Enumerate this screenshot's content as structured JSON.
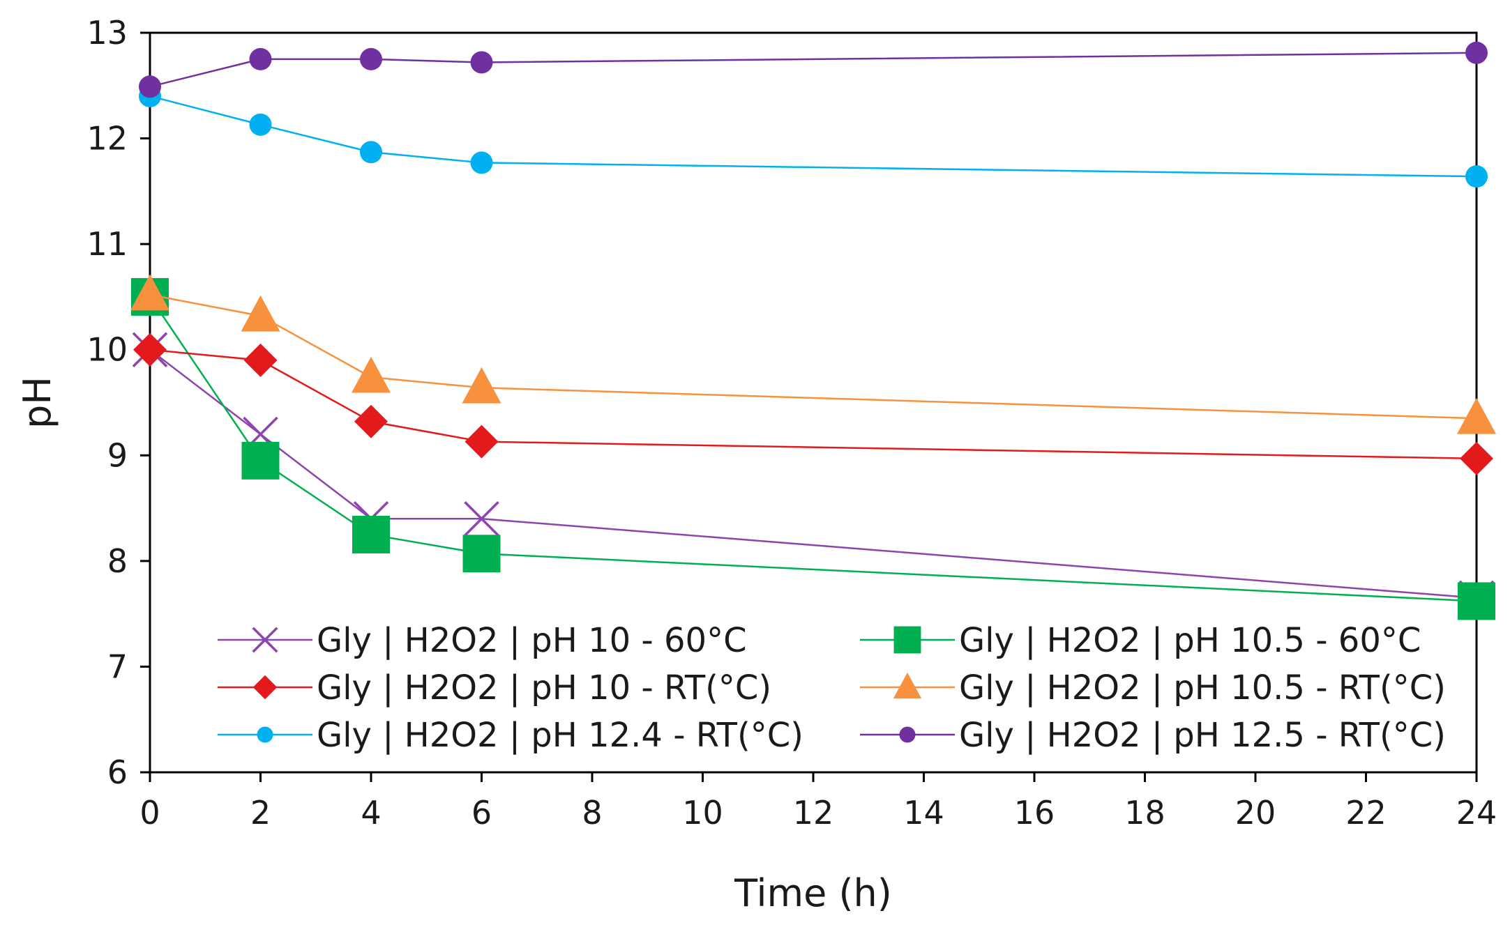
{
  "chart_data": {
    "type": "line",
    "title": "",
    "xlabel": "Time (h)",
    "ylabel": "pH",
    "xlim": [
      0,
      24
    ],
    "ylim": [
      6,
      13
    ],
    "xticks": [
      "0",
      "2",
      "4",
      "6",
      "8",
      "10",
      "12",
      "14",
      "16",
      "18",
      "20",
      "22",
      "24"
    ],
    "yticks": [
      "6",
      "7",
      "8",
      "9",
      "10",
      "11",
      "12",
      "13"
    ],
    "grid": false,
    "legend_position": "bottom",
    "series": [
      {
        "name": "Gly | H2O2 | pH 10 - 60°C",
        "color": "#8e44ad",
        "marker": "x",
        "points": [
          {
            "x": 0,
            "y": 10.0
          },
          {
            "x": 2,
            "y": 9.2
          },
          {
            "x": 4,
            "y": 8.4
          },
          {
            "x": 6,
            "y": 8.4
          },
          {
            "x": 24,
            "y": 7.65
          }
        ]
      },
      {
        "name": "Gly | H2O2 | pH 10.5 - 60°C",
        "color": "#00b050",
        "marker": "square",
        "points": [
          {
            "x": 0,
            "y": 10.5
          },
          {
            "x": 2,
            "y": 8.95
          },
          {
            "x": 4,
            "y": 8.25
          },
          {
            "x": 6,
            "y": 8.07
          },
          {
            "x": 24,
            "y": 7.62
          }
        ]
      },
      {
        "name": "Gly | H2O2 | pH 10 - RT(°C)",
        "color": "#e31a1c",
        "marker": "diamond",
        "points": [
          {
            "x": 0,
            "y": 10.0
          },
          {
            "x": 2,
            "y": 9.9
          },
          {
            "x": 4,
            "y": 9.32
          },
          {
            "x": 6,
            "y": 9.13
          },
          {
            "x": 24,
            "y": 8.97
          }
        ]
      },
      {
        "name": "Gly | H2O2 | pH 10.5 - RT(°C)",
        "color": "#f7913d",
        "marker": "triangle",
        "points": [
          {
            "x": 0,
            "y": 10.52
          },
          {
            "x": 2,
            "y": 10.32
          },
          {
            "x": 4,
            "y": 9.74
          },
          {
            "x": 6,
            "y": 9.64
          },
          {
            "x": 24,
            "y": 9.35
          }
        ]
      },
      {
        "name": "Gly | H2O2 | pH 12.4 - RT(°C)",
        "color": "#00b0f0",
        "marker": "circle",
        "points": [
          {
            "x": 0,
            "y": 12.4
          },
          {
            "x": 2,
            "y": 12.13
          },
          {
            "x": 4,
            "y": 11.87
          },
          {
            "x": 6,
            "y": 11.77
          },
          {
            "x": 24,
            "y": 11.64
          }
        ]
      },
      {
        "name": "Gly | H2O2 | pH 12.5 - RT(°C)",
        "color": "#7030a0",
        "marker": "circle",
        "points": [
          {
            "x": 0,
            "y": 12.49
          },
          {
            "x": 2,
            "y": 12.75
          },
          {
            "x": 4,
            "y": 12.75
          },
          {
            "x": 6,
            "y": 12.72
          },
          {
            "x": 24,
            "y": 12.81
          }
        ]
      }
    ]
  }
}
